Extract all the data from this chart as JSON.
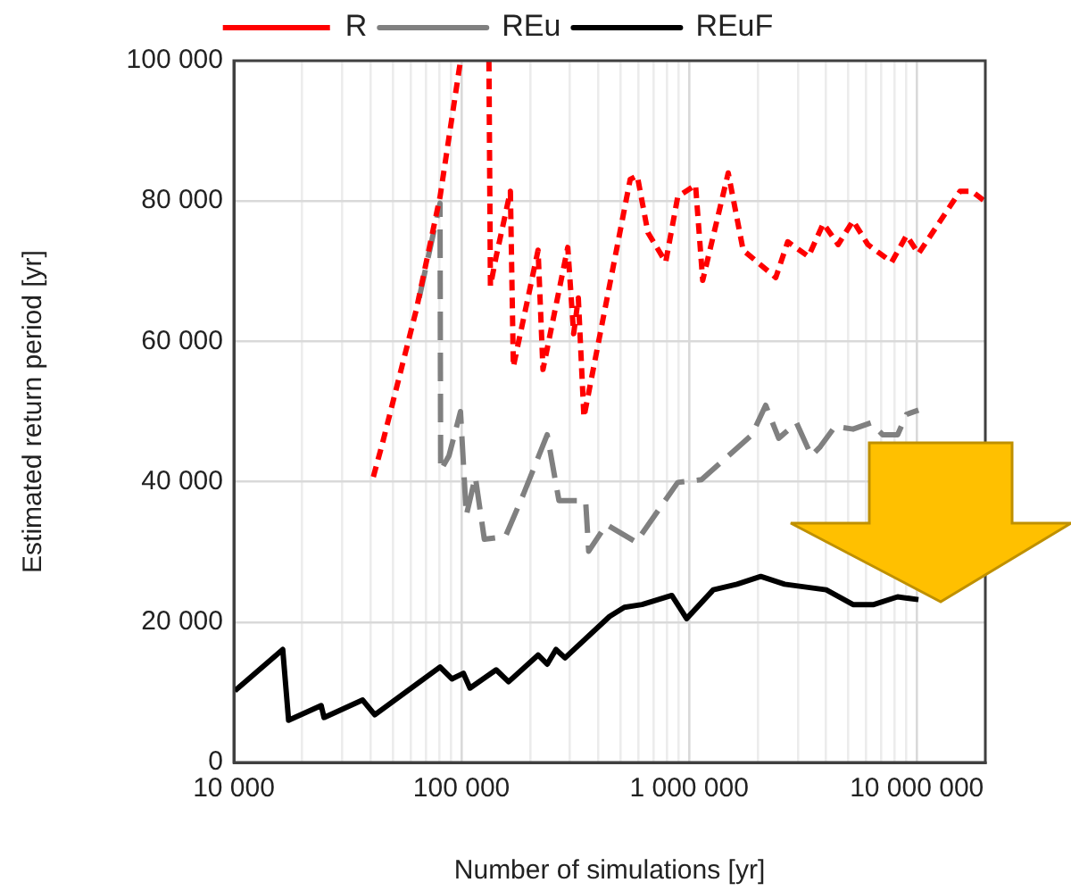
{
  "chart_data": {
    "type": "line",
    "xlabel": "Number of simulations [yr]",
    "ylabel": "Estimated return period [yr]",
    "log": "x",
    "grid": true,
    "legend": "top",
    "marker": "none",
    "xlim": [
      10000,
      20000000
    ],
    "xticks": [
      {
        "value": 10000,
        "label": "10 000"
      },
      {
        "value": 20000,
        "label": null
      },
      {
        "value": 30000,
        "label": null
      },
      {
        "value": 40000,
        "label": null
      },
      {
        "value": 50000,
        "label": null
      },
      {
        "value": 60000,
        "label": null
      },
      {
        "value": 70000,
        "label": null
      },
      {
        "value": 80000,
        "label": null
      },
      {
        "value": 90000,
        "label": null
      },
      {
        "value": 100000,
        "label": "100 000"
      },
      {
        "value": 200000,
        "label": null
      },
      {
        "value": 300000,
        "label": null
      },
      {
        "value": 400000,
        "label": null
      },
      {
        "value": 500000,
        "label": null
      },
      {
        "value": 600000,
        "label": null
      },
      {
        "value": 700000,
        "label": null
      },
      {
        "value": 800000,
        "label": null
      },
      {
        "value": 900000,
        "label": null
      },
      {
        "value": 1000000,
        "label": "1 000 000"
      },
      {
        "value": 2000000,
        "label": null
      },
      {
        "value": 3000000,
        "label": null
      },
      {
        "value": 4000000,
        "label": null
      },
      {
        "value": 5000000,
        "label": null
      },
      {
        "value": 6000000,
        "label": null
      },
      {
        "value": 7000000,
        "label": null
      },
      {
        "value": 8000000,
        "label": null
      },
      {
        "value": 9000000,
        "label": null
      },
      {
        "value": 10000000,
        "label": "10 000 000"
      },
      {
        "value": 20000000,
        "label": null
      }
    ],
    "ylim": [
      0,
      100000
    ],
    "yticks": [
      {
        "value": 0,
        "label": "0"
      },
      {
        "value": 20000,
        "label": "20 000"
      },
      {
        "value": 40000,
        "label": "40 000"
      },
      {
        "value": 60000,
        "label": "60 000"
      },
      {
        "value": 80000,
        "label": "80 000"
      },
      {
        "value": 100000,
        "label": "100 000"
      }
    ],
    "series": [
      {
        "name": "R",
        "color": "#ff0000",
        "line_style": "dashed",
        "x": [
          41000,
          44900,
          63300,
          80500,
          99000,
          115000,
          132000,
          134000,
          142000,
          164000,
          169000,
          217000,
          228000,
          293000,
          311000,
          326000,
          345000,
          551000,
          592000,
          659000,
          789000,
          891000,
          1067000,
          1147000,
          1485000,
          1727000,
          2402000,
          2711000,
          3342000,
          3884000,
          4515000,
          5247000,
          6097000,
          7757000,
          9016000,
          10170000,
          15490000,
          17460000,
          19680000
        ],
        "values": [
          40700,
          45400,
          64500,
          80600,
          100000,
          null,
          100000,
          67900,
          72100,
          81400,
          56400,
          73000,
          56000,
          73400,
          61100,
          66200,
          49200,
          83100,
          83600,
          75500,
          71300,
          80600,
          82300,
          68700,
          84000,
          73000,
          69100,
          74200,
          72100,
          76800,
          73800,
          77200,
          73800,
          71300,
          75100,
          72500,
          81400,
          81400,
          80100
        ]
      },
      {
        "name": "REu",
        "color": "#808080",
        "line_style": "longdash",
        "x": [
          65200,
          80500,
          81000,
          88100,
          99000,
          105000,
          115000,
          126000,
          156000,
          187000,
          238000,
          268000,
          351000,
          362000,
          433000,
          585000,
          891000,
          1133000,
          1442000,
          1889000,
          2168000,
          2474000,
          2963000,
          3443000,
          3767000,
          4379000,
          5247000,
          6282000,
          7080000,
          8236000,
          9016000,
          10170000
        ],
        "values": [
          66200,
          79700,
          41600,
          43700,
          50000,
          35200,
          40700,
          31800,
          32200,
          38200,
          46700,
          37300,
          37300,
          30100,
          33900,
          31400,
          39900,
          40300,
          43300,
          46700,
          50900,
          46200,
          48400,
          43700,
          45000,
          47900,
          47500,
          48400,
          46700,
          46700,
          49600,
          50200
        ]
      },
      {
        "name": "REuF",
        "color": "#000000",
        "line_style": "solid",
        "x": [
          10100,
          16400,
          17400,
          24200,
          24900,
          36800,
          41600,
          80500,
          90800,
          102000,
          109000,
          142000,
          161000,
          217000,
          238000,
          260000,
          285000,
          447000,
          519000,
          621000,
          839000,
          975000,
          1277000,
          1622000,
          2064000,
          2627000,
          4000000,
          5247000,
          6471000,
          8236000,
          10170000
        ],
        "values": [
          10200,
          16100,
          6000,
          8100,
          6400,
          8900,
          6800,
          13600,
          11900,
          12700,
          10600,
          13200,
          11500,
          15300,
          14000,
          16100,
          14900,
          20800,
          22100,
          22500,
          23800,
          20500,
          24600,
          25400,
          26500,
          25400,
          24600,
          22500,
          22500,
          23600,
          23200
        ]
      }
    ]
  }
}
